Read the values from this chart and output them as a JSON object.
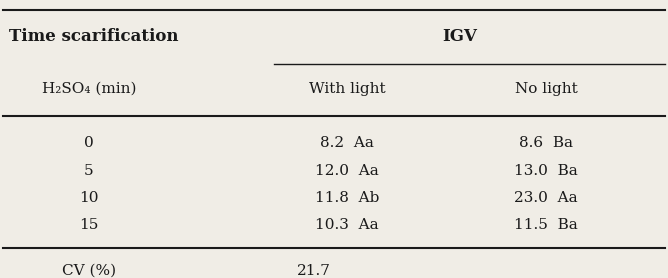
{
  "title_col1": "Time scarification",
  "subtitle_col1": "H₂SO₄ (min)",
  "title_igv": "IGV",
  "col_with_light": "With light",
  "col_no_light": "No light",
  "rows": [
    {
      "time": "0",
      "with_light": "8.2  Aa",
      "no_light": "8.6  Ba"
    },
    {
      "time": "5",
      "with_light": "12.0  Aa",
      "no_light": "13.0  Ba"
    },
    {
      "time": "10",
      "with_light": "11.8  Ab",
      "no_light": "23.0  Aa"
    },
    {
      "time": "15",
      "with_light": "10.3  Aa",
      "no_light": "11.5  Ba"
    }
  ],
  "cv_label": "CV (%)",
  "cv_value": "21.7",
  "bg_color": "#f0ede6",
  "text_color": "#1a1a1a",
  "line_color": "#1a1a1a",
  "font_size": 11,
  "header_font_size": 12
}
